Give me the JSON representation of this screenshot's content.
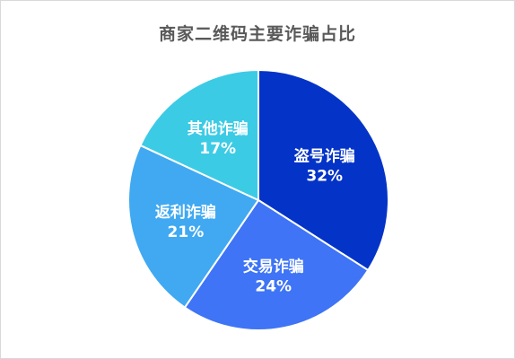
{
  "chart_data": {
    "type": "pie",
    "title": "商家二维码主要诈骗占比",
    "start_angle_deg": 0,
    "direction": "clockwise",
    "slices": [
      {
        "label": "盗号诈骗",
        "value": 32,
        "display": "32%",
        "color": "#0433c8"
      },
      {
        "label": "交易诈骗",
        "value": 24,
        "display": "24%",
        "color": "#3e74f5"
      },
      {
        "label": "返利诈骗",
        "value": 21,
        "display": "21%",
        "color": "#40a9f1"
      },
      {
        "label": "其他诈骗",
        "value": 17,
        "display": "17%",
        "color": "#3ccbe5"
      }
    ],
    "legend": "none",
    "slice_border_color": "#ffffff"
  }
}
